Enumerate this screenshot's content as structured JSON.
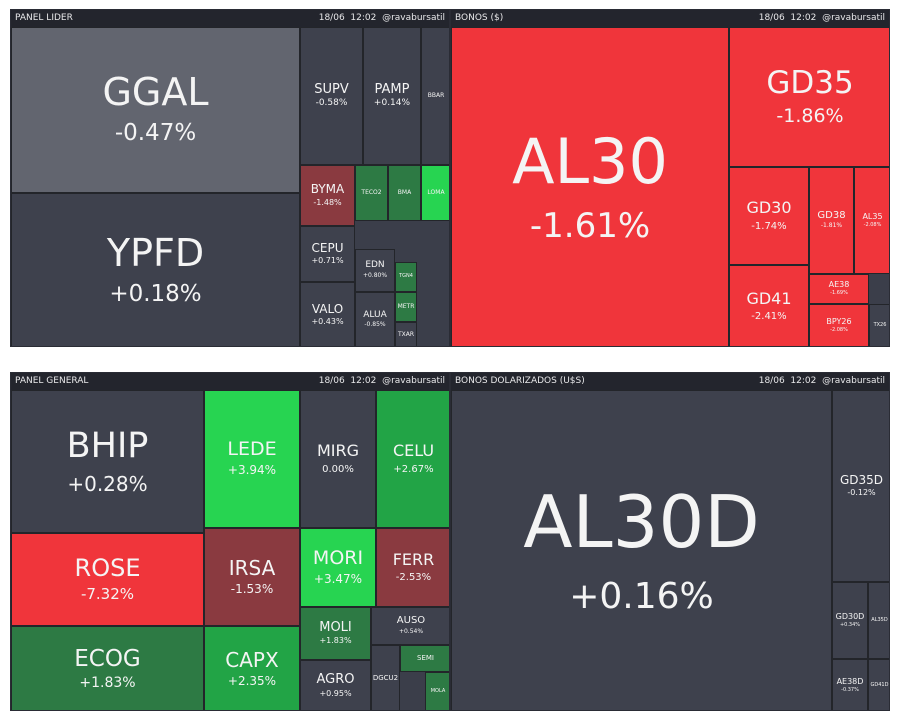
{
  "panels": [
    {
      "id": "panel-lider",
      "title": "PANEL LIDER",
      "date": "18/06",
      "time": "12:02",
      "handle": "@ravabursatil"
    },
    {
      "id": "bonos",
      "title": "BONOS ($)",
      "date": "18/06",
      "time": "12:02",
      "handle": "@ravabursatil"
    },
    {
      "id": "panel-general",
      "title": "PANEL GENERAL",
      "date": "18/06",
      "time": "12:02",
      "handle": "@ravabursatil"
    },
    {
      "id": "bonos-dolarizados",
      "title": "BONOS DOLARIZADOS (U$S)",
      "date": "18/06",
      "time": "12:02",
      "handle": "@ravabursatil"
    }
  ],
  "colors": {
    "neutral": "#3e414d",
    "neutral_light": "#62656f",
    "red": "#f0353b",
    "dark_red": "#8a3a40",
    "green": "#27d451",
    "mid_green": "#22a446",
    "dark_green": "#2d7a44"
  },
  "chart_data": [
    {
      "type": "treemap",
      "panel": "PANEL LIDER",
      "tiles": [
        {
          "name": "GGAL",
          "change": "-0.47%",
          "value": -0.47
        },
        {
          "name": "YPFD",
          "change": "+0.18%",
          "value": 0.18
        },
        {
          "name": "SUPV",
          "change": "-0.58%",
          "value": -0.58
        },
        {
          "name": "PAMP",
          "change": "+0.14%",
          "value": 0.14
        },
        {
          "name": "BBAR",
          "change": "",
          "value": null
        },
        {
          "name": "BYMA",
          "change": "-1.48%",
          "value": -1.48
        },
        {
          "name": "TECO2",
          "change": "",
          "value": null
        },
        {
          "name": "BMA",
          "change": "",
          "value": null
        },
        {
          "name": "LOMA",
          "change": "",
          "value": null
        },
        {
          "name": "CEPU",
          "change": "+0.71%",
          "value": 0.71
        },
        {
          "name": "EDN",
          "change": "+0.80%",
          "value": 0.8
        },
        {
          "name": "TGN4",
          "change": "",
          "value": null
        },
        {
          "name": "VALO",
          "change": "+0.43%",
          "value": 0.43
        },
        {
          "name": "ALUA",
          "change": "-0.85%",
          "value": -0.85
        },
        {
          "name": "METR",
          "change": "",
          "value": null
        },
        {
          "name": "TXAR",
          "change": "",
          "value": null
        }
      ]
    },
    {
      "type": "treemap",
      "panel": "BONOS ($)",
      "tiles": [
        {
          "name": "AL30",
          "change": "-1.61%",
          "value": -1.61
        },
        {
          "name": "GD35",
          "change": "-1.86%",
          "value": -1.86
        },
        {
          "name": "GD30",
          "change": "-1.74%",
          "value": -1.74
        },
        {
          "name": "GD38",
          "change": "-1.81%",
          "value": -1.81
        },
        {
          "name": "AL35",
          "change": "-2.08%",
          "value": -2.08
        },
        {
          "name": "GD41",
          "change": "-2.41%",
          "value": -2.41
        },
        {
          "name": "AE38",
          "change": "-1.69%",
          "value": -1.69
        },
        {
          "name": "BPY26",
          "change": "-2.08%",
          "value": -2.08
        },
        {
          "name": "TX26",
          "change": "",
          "value": null
        }
      ]
    },
    {
      "type": "treemap",
      "panel": "PANEL GENERAL",
      "tiles": [
        {
          "name": "BHIP",
          "change": "+0.28%",
          "value": 0.28
        },
        {
          "name": "LEDE",
          "change": "+3.94%",
          "value": 3.94
        },
        {
          "name": "MIRG",
          "change": "0.00%",
          "value": 0.0
        },
        {
          "name": "CELU",
          "change": "+2.67%",
          "value": 2.67
        },
        {
          "name": "ROSE",
          "change": "-7.32%",
          "value": -7.32
        },
        {
          "name": "IRSA",
          "change": "-1.53%",
          "value": -1.53
        },
        {
          "name": "MORI",
          "change": "+3.47%",
          "value": 3.47
        },
        {
          "name": "FERR",
          "change": "-2.53%",
          "value": -2.53
        },
        {
          "name": "ECOG",
          "change": "+1.83%",
          "value": 1.83
        },
        {
          "name": "CAPX",
          "change": "+2.35%",
          "value": 2.35
        },
        {
          "name": "MOLI",
          "change": "+1.83%",
          "value": 1.83
        },
        {
          "name": "AUSO",
          "change": "+0.54%",
          "value": 0.54
        },
        {
          "name": "SEMI",
          "change": "",
          "value": null
        },
        {
          "name": "AGRO",
          "change": "+0.95%",
          "value": 0.95
        },
        {
          "name": "DGCU2",
          "change": "",
          "value": null
        },
        {
          "name": "MOLA",
          "change": "",
          "value": null
        }
      ]
    },
    {
      "type": "treemap",
      "panel": "BONOS DOLARIZADOS (U$S)",
      "tiles": [
        {
          "name": "AL30D",
          "change": "+0.16%",
          "value": 0.16
        },
        {
          "name": "GD35D",
          "change": "-0.12%",
          "value": -0.12
        },
        {
          "name": "GD30D",
          "change": "+0.34%",
          "value": 0.34
        },
        {
          "name": "AL35D",
          "change": "",
          "value": null
        },
        {
          "name": "AE38D",
          "change": "-0.37%",
          "value": -0.37
        },
        {
          "name": "GD41D",
          "change": "",
          "value": null
        }
      ]
    }
  ]
}
